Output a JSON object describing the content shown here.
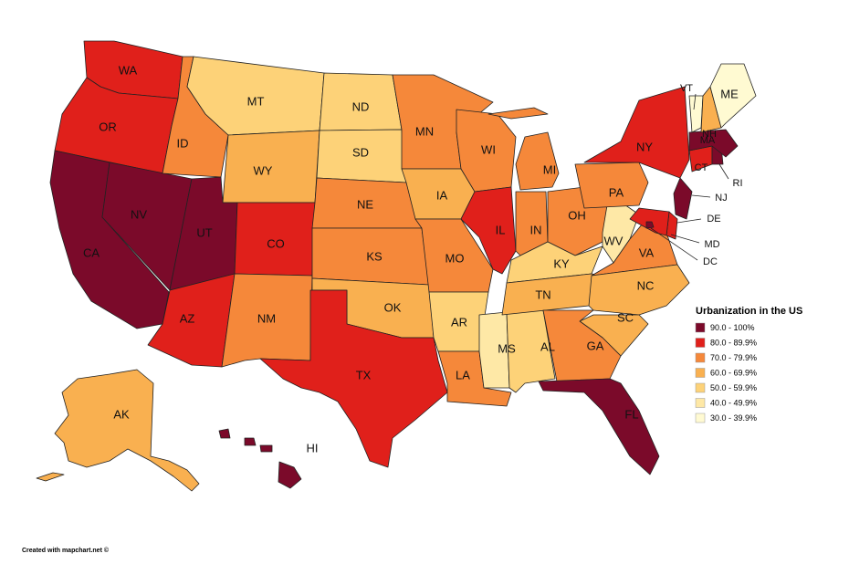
{
  "map": {
    "states": [
      {
        "label": "WA",
        "color": "#e0201b"
      },
      {
        "label": "OR",
        "color": "#e0201b"
      },
      {
        "label": "CA",
        "color": "#7b0a2a"
      },
      {
        "label": "NV",
        "color": "#7b0a2a"
      },
      {
        "label": "ID",
        "color": "#f5883a"
      },
      {
        "label": "MT",
        "color": "#fdd278"
      },
      {
        "label": "WY",
        "color": "#f9b050"
      },
      {
        "label": "UT",
        "color": "#7b0a2a"
      },
      {
        "label": "CO",
        "color": "#e0201b"
      },
      {
        "label": "AZ",
        "color": "#e0201b"
      },
      {
        "label": "NM",
        "color": "#f5883a"
      },
      {
        "label": "ND",
        "color": "#fdd278"
      },
      {
        "label": "SD",
        "color": "#fdd278"
      },
      {
        "label": "NE",
        "color": "#f5883a"
      },
      {
        "label": "KS",
        "color": "#f5883a"
      },
      {
        "label": "OK",
        "color": "#f9b050"
      },
      {
        "label": "TX",
        "color": "#e0201b"
      },
      {
        "label": "MN",
        "color": "#f5883a"
      },
      {
        "label": "IA",
        "color": "#f9b050"
      },
      {
        "label": "MO",
        "color": "#f5883a"
      },
      {
        "label": "AR",
        "color": "#fdd278"
      },
      {
        "label": "LA",
        "color": "#f5883a"
      },
      {
        "label": "MS",
        "color": "#fee8a6"
      },
      {
        "label": "AL",
        "color": "#fdd278"
      },
      {
        "label": "WI",
        "color": "#f5883a"
      },
      {
        "label": "IL",
        "color": "#e0201b"
      },
      {
        "label": "MI",
        "color": "#f5883a"
      },
      {
        "label": "IN",
        "color": "#f5883a"
      },
      {
        "label": "OH",
        "color": "#f5883a"
      },
      {
        "label": "KY",
        "color": "#fdd278"
      },
      {
        "label": "TN",
        "color": "#f9b050"
      },
      {
        "label": "WV",
        "color": "#fee8a6"
      },
      {
        "label": "VA",
        "color": "#f5883a"
      },
      {
        "label": "NC",
        "color": "#f9b050"
      },
      {
        "label": "SC",
        "color": "#f9b050"
      },
      {
        "label": "GA",
        "color": "#f5883a"
      },
      {
        "label": "FL",
        "color": "#7b0a2a"
      },
      {
        "label": "PA",
        "color": "#f5883a"
      },
      {
        "label": "NY",
        "color": "#e0201b"
      },
      {
        "label": "NJ",
        "color": "#7b0a2a"
      },
      {
        "label": "DE",
        "color": "#e0201b"
      },
      {
        "label": "MD",
        "color": "#e0201b"
      },
      {
        "label": "DC",
        "color": "#7b0a2a"
      },
      {
        "label": "CT",
        "color": "#e0201b"
      },
      {
        "label": "RI",
        "color": "#7b0a2a"
      },
      {
        "label": "MA",
        "color": "#7b0a2a"
      },
      {
        "label": "VT",
        "color": "#fffad2"
      },
      {
        "label": "NH",
        "color": "#f9b050"
      },
      {
        "label": "ME",
        "color": "#fffad2"
      },
      {
        "label": "AK",
        "color": "#f9b050"
      },
      {
        "label": "HI",
        "color": "#7b0a2a"
      }
    ]
  },
  "legend": {
    "title": "Urbanization in the US",
    "items": [
      {
        "label": "90.0 - 100%",
        "color": "#7b0a2a"
      },
      {
        "label": "80.0 - 89.9%",
        "color": "#e0201b"
      },
      {
        "label": "70.0 - 79.9%",
        "color": "#f5883a"
      },
      {
        "label": "60.0 - 69.9%",
        "color": "#f9b050"
      },
      {
        "label": "50.0 - 59.9%",
        "color": "#fdd278"
      },
      {
        "label": "40.0 - 49.9%",
        "color": "#fee8a6"
      },
      {
        "label": "30.0 - 39.9%",
        "color": "#fffad2"
      }
    ]
  },
  "footer": "Created with mapchart.net ©"
}
